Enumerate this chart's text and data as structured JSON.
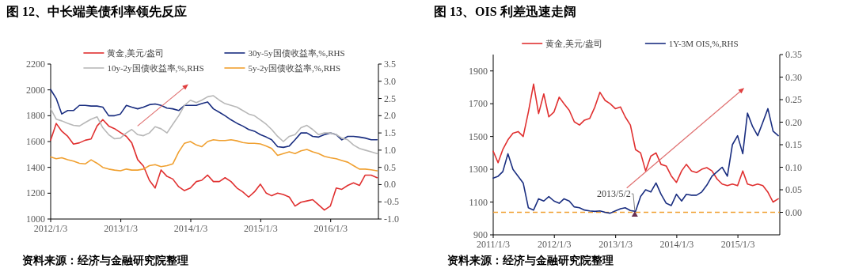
{
  "chart_data": [
    {
      "type": "line",
      "title": "图 12、中长端美债利率领先反应",
      "legend": "top",
      "x": [
        "2012-01-03",
        "2012-02",
        "2012-03",
        "2012-04",
        "2012-05",
        "2012-06",
        "2012-07",
        "2012-08",
        "2012-09",
        "2012-10",
        "2012-11",
        "2012-12",
        "2013-01",
        "2013-02",
        "2013-03",
        "2013-04",
        "2013-05",
        "2013-06",
        "2013-07",
        "2013-08",
        "2013-09",
        "2013-10",
        "2013-11",
        "2013-12",
        "2014-01",
        "2014-02",
        "2014-03",
        "2014-04",
        "2014-05",
        "2014-06",
        "2014-07",
        "2014-08",
        "2014-09",
        "2014-10",
        "2014-11",
        "2014-12",
        "2015-01",
        "2015-02",
        "2015-03",
        "2015-04",
        "2015-05",
        "2015-06",
        "2015-07",
        "2015-08",
        "2015-09",
        "2015-10",
        "2015-11",
        "2015-12",
        "2016-01",
        "2016-02",
        "2016-03",
        "2016-04",
        "2016-05",
        "2016-06",
        "2016-07",
        "2016-08",
        "2016-09"
      ],
      "series": [
        {
          "name": "黄金,美元/盎司",
          "color": "#e03030",
          "values": [
            1610,
            1740,
            1680,
            1640,
            1580,
            1590,
            1610,
            1620,
            1720,
            1770,
            1720,
            1700,
            1670,
            1640,
            1590,
            1460,
            1410,
            1300,
            1240,
            1380,
            1330,
            1310,
            1250,
            1220,
            1240,
            1290,
            1300,
            1340,
            1290,
            1290,
            1320,
            1290,
            1240,
            1210,
            1170,
            1210,
            1270,
            1200,
            1180,
            1200,
            1190,
            1170,
            1100,
            1130,
            1140,
            1150,
            1110,
            1070,
            1100,
            1240,
            1230,
            1260,
            1280,
            1260,
            1340,
            1340,
            1320
          ]
        },
        {
          "name": "30y-5y国债收益率,%,RHS",
          "color": "#1a2e80",
          "axis": "y2",
          "values": [
            2.76,
            2.5,
            2.05,
            2.15,
            2.15,
            2.3,
            2.3,
            2.28,
            2.28,
            2.25,
            2.0,
            2.0,
            2.05,
            2.3,
            2.25,
            2.2,
            2.25,
            2.32,
            2.34,
            2.3,
            2.22,
            2.2,
            2.15,
            2.3,
            2.3,
            2.3,
            2.35,
            2.4,
            2.2,
            2.1,
            2.0,
            1.88,
            1.78,
            1.7,
            1.6,
            1.55,
            1.45,
            1.38,
            1.3,
            1.1,
            1.08,
            1.12,
            1.3,
            1.5,
            1.5,
            1.4,
            1.38,
            1.45,
            1.5,
            1.45,
            1.3,
            1.4,
            1.4,
            1.38,
            1.35,
            1.3,
            1.3
          ]
        },
        {
          "name": "10y-2y国债收益率,%,RHS",
          "color": "#b8b8b8",
          "axis": "y2",
          "values": [
            2.2,
            1.9,
            1.85,
            1.78,
            1.72,
            1.7,
            1.8,
            1.9,
            1.97,
            1.65,
            1.45,
            1.33,
            1.35,
            1.5,
            1.6,
            1.45,
            1.42,
            1.5,
            1.68,
            1.62,
            1.5,
            1.75,
            2.0,
            2.3,
            2.45,
            2.38,
            2.45,
            2.55,
            2.58,
            2.45,
            2.35,
            2.3,
            2.25,
            2.15,
            2.05,
            2.0,
            1.88,
            1.75,
            1.6,
            1.4,
            1.25,
            1.4,
            1.45,
            1.65,
            1.72,
            1.6,
            1.45,
            1.5,
            1.5,
            1.45,
            1.35,
            1.3,
            1.15,
            1.05,
            1.0,
            0.95,
            0.9
          ]
        },
        {
          "name": "5y-2y国债收益率,%,RHS",
          "color": "#f0a030",
          "axis": "y2",
          "values": [
            0.8,
            0.75,
            0.78,
            0.72,
            0.68,
            0.62,
            0.6,
            0.72,
            0.62,
            0.5,
            0.45,
            0.42,
            0.4,
            0.45,
            0.42,
            0.42,
            0.45,
            0.55,
            0.58,
            0.52,
            0.55,
            0.6,
            0.95,
            1.2,
            1.25,
            1.15,
            1.1,
            1.25,
            1.3,
            1.28,
            1.28,
            1.3,
            1.27,
            1.22,
            1.2,
            1.2,
            1.18,
            1.12,
            1.05,
            0.85,
            0.9,
            0.95,
            0.9,
            0.98,
            1.02,
            0.95,
            0.9,
            0.82,
            0.78,
            0.75,
            0.7,
            0.65,
            0.55,
            0.45,
            0.45,
            0.43,
            0.4
          ]
        }
      ],
      "xlim": [
        "2012-01-03",
        "2016-09-08"
      ],
      "xticks": [
        {
          "value": "2012-01-03",
          "label": "2012/1/3"
        },
        {
          "value": "2013-01-03",
          "label": "2013/1/3"
        },
        {
          "value": "2014-01-03",
          "label": "2014/1/3"
        },
        {
          "value": "2015-01-03",
          "label": "2015/1/3"
        },
        {
          "value": "2016-01-03",
          "label": "2016/1/3"
        }
      ],
      "ylim": [
        1000,
        2200
      ],
      "yticks": [
        1000,
        1200,
        1400,
        1600,
        1800,
        2000,
        2200
      ],
      "y2lim": [
        -1.0,
        3.5
      ],
      "y2ticks": [
        {
          "value": -1.0,
          "label": "-1.0"
        },
        {
          "value": -0.5,
          "label": "-0.5"
        },
        {
          "value": 0,
          "label": "0.0"
        },
        {
          "value": 0.5,
          "label": "0.5"
        },
        {
          "value": 1.0,
          "label": "1.0"
        },
        {
          "value": 1.5,
          "label": "1.5"
        },
        {
          "value": 2.0,
          "label": "2.0"
        },
        {
          "value": 2.5,
          "label": "2.5"
        },
        {
          "value": 3.0,
          "label": "3.0"
        },
        {
          "value": 3.5,
          "label": "3.5"
        }
      ],
      "annotations": [
        "资料来源：经济与金融研究院整理"
      ]
    },
    {
      "type": "line",
      "title": "图 13、OIS 利差迅速走阔",
      "legend": "top",
      "x": [
        "2011-01-03",
        "2011-02",
        "2011-03",
        "2011-04",
        "2011-05",
        "2011-06",
        "2011-07",
        "2011-08",
        "2011-09",
        "2011-10",
        "2011-11",
        "2011-12",
        "2012-01",
        "2012-02",
        "2012-03",
        "2012-04",
        "2012-05",
        "2012-06",
        "2012-07",
        "2012-08",
        "2012-09",
        "2012-10",
        "2012-11",
        "2012-12",
        "2013-01",
        "2013-02",
        "2013-03",
        "2013-04",
        "2013-05-02",
        "2013-06",
        "2013-07",
        "2013-08",
        "2013-09",
        "2013-10",
        "2013-11",
        "2013-12",
        "2014-01",
        "2014-02",
        "2014-03",
        "2014-04",
        "2014-05",
        "2014-06",
        "2014-07",
        "2014-08",
        "2014-09",
        "2014-10",
        "2014-11",
        "2014-12",
        "2015-01",
        "2015-02",
        "2015-03",
        "2015-04",
        "2015-05",
        "2015-06",
        "2015-07",
        "2015-08",
        "2015-09"
      ],
      "series": [
        {
          "name": "黄金,美元/盎司",
          "color": "#e03030",
          "values": [
            1410,
            1340,
            1420,
            1480,
            1520,
            1530,
            1500,
            1650,
            1820,
            1640,
            1760,
            1620,
            1650,
            1740,
            1700,
            1660,
            1590,
            1570,
            1600,
            1610,
            1680,
            1770,
            1720,
            1700,
            1670,
            1680,
            1620,
            1570,
            1420,
            1400,
            1290,
            1380,
            1400,
            1330,
            1320,
            1260,
            1220,
            1290,
            1330,
            1290,
            1280,
            1300,
            1310,
            1290,
            1240,
            1210,
            1200,
            1210,
            1200,
            1290,
            1210,
            1200,
            1210,
            1200,
            1160,
            1100,
            1120
          ]
        },
        {
          "name": "1Y-3M OIS,%,RHS",
          "color": "#1a2e80",
          "axis": "y2",
          "values": [
            0.076,
            0.08,
            0.09,
            0.13,
            0.095,
            0.08,
            0.065,
            0.01,
            0.005,
            0.03,
            0.025,
            0.035,
            0.025,
            0.02,
            0.03,
            0.025,
            0.012,
            0.01,
            0.005,
            0.003,
            0.002,
            0.003,
            0.0,
            -0.002,
            0.003,
            0.008,
            0.01,
            0.004,
            0.002,
            0.035,
            0.05,
            0.045,
            0.065,
            0.04,
            0.02,
            0.015,
            0.04,
            0.025,
            0.04,
            0.038,
            0.038,
            0.045,
            0.06,
            0.08,
            0.09,
            0.1,
            0.08,
            0.15,
            0.17,
            0.13,
            0.22,
            0.19,
            0.17,
            0.2,
            0.23,
            0.18,
            0.17
          ]
        }
      ],
      "xlim": [
        "2011-01-03",
        "2015-09-10"
      ],
      "xticks": [
        {
          "value": "2011-01-03",
          "label": "2011/1/3"
        },
        {
          "value": "2012-01-03",
          "label": "2012/1/3"
        },
        {
          "value": "2013-01-03",
          "label": "2013/1/3"
        },
        {
          "value": "2014-01-03",
          "label": "2014/1/3"
        },
        {
          "value": "2015-01-03",
          "label": "2015/1/3"
        }
      ],
      "ylim": [
        900,
        2000
      ],
      "yticks": [
        900,
        1100,
        1300,
        1500,
        1700,
        1900
      ],
      "y2lim": [
        -0.05,
        0.35
      ],
      "y2ticks": [
        {
          "value": 0,
          "label": "0.00"
        },
        {
          "value": 0.05,
          "label": "0.05"
        },
        {
          "value": 0.1,
          "label": "0.10"
        },
        {
          "value": 0.15,
          "label": "0.15"
        },
        {
          "value": 0.2,
          "label": "0.20"
        },
        {
          "value": 0.25,
          "label": "0.25"
        },
        {
          "value": 0.3,
          "label": "0.30"
        },
        {
          "value": 0.35,
          "label": "0.35"
        }
      ],
      "ref_lines": [
        {
          "axis": "y2",
          "value": 0,
          "color": "#f0a030",
          "line_style": "dashed"
        }
      ],
      "annotations": [
        "2013/5/2",
        "资料来源：经济与金融研究院整理"
      ]
    }
  ]
}
